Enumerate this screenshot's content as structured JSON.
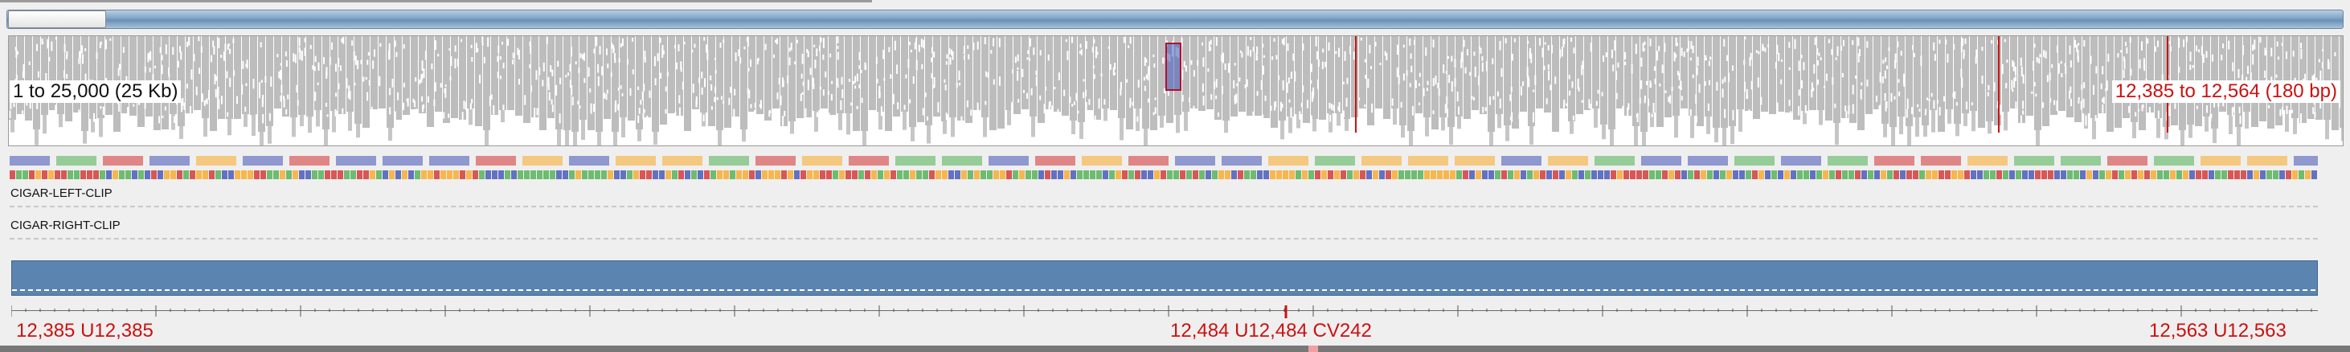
{
  "overview": {
    "range_label": "1 to 25,000 (25 Kb)",
    "visible_label": "12,385 to 12,564 (180 bp)"
  },
  "tracks": {
    "left_clip_label": "CIGAR-LEFT-CLIP",
    "right_clip_label": "CIGAR-RIGHT-CLIP"
  },
  "ruler": {
    "left_label": "12,385 U12,385",
    "center_label": "12,484 U12,484 CV242",
    "right_label": "12,563 U12,563"
  },
  "colors": {
    "nt_A": "#4caf50",
    "nt_C": "#3f51b5",
    "nt_G": "#f9a825",
    "nt_T": "#d32f2f",
    "coverage": "#5b84b1",
    "highlight": "#cc1111"
  }
}
